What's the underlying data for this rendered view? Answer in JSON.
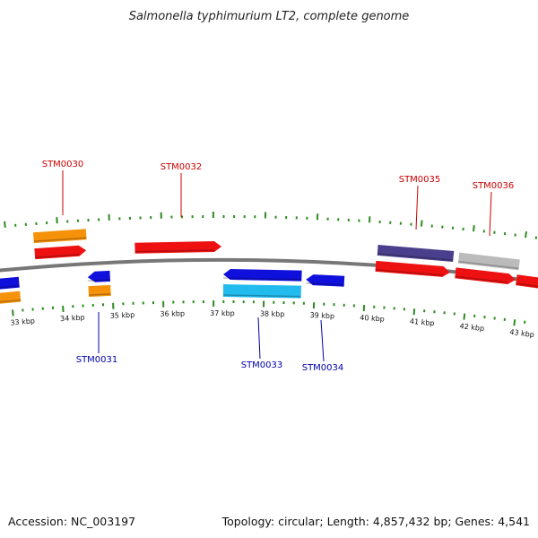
{
  "title": "Salmonella typhimurium LT2, complete genome",
  "footer": {
    "accession": "Accession: NC_003197",
    "summary": "Topology: circular; Length: 4,857,432 bp; Genes: 4,541"
  },
  "colors": {
    "backbone": "#777777",
    "ticks": "#2e8b22",
    "label_forward": "#cc0000",
    "label_reverse": "#0000aa"
  },
  "ticks": [
    "33 kbp",
    "34 kbp",
    "35 kbp",
    "36 kbp",
    "37 kbp",
    "38 kbp",
    "39 kbp",
    "40 kbp",
    "41 kbp",
    "42 kbp",
    "43 kbp"
  ],
  "genes": [
    {
      "label": "STM0030",
      "strand": "forward"
    },
    {
      "label": "STM0031",
      "strand": "reverse"
    },
    {
      "label": "STM0032",
      "strand": "forward"
    },
    {
      "label": "STM0033",
      "strand": "reverse"
    },
    {
      "label": "STM0034",
      "strand": "reverse"
    },
    {
      "label": "STM0035",
      "strand": "forward"
    },
    {
      "label": "STM0036",
      "strand": "forward"
    }
  ]
}
